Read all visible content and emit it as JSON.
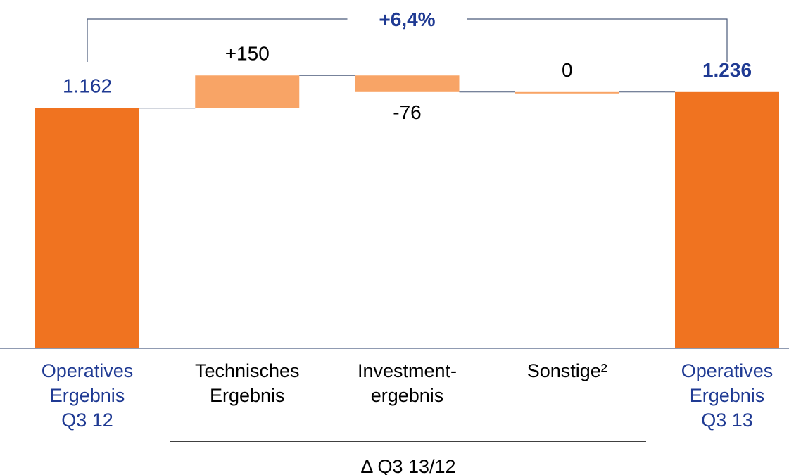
{
  "chart_data": {
    "type": "waterfall",
    "categories": [
      "Operatives\nErgebnis\nQ3 12",
      "Technisches\nErgebnis",
      "Investment-\nergebnis",
      "Sonstige²",
      "Operatives\nErgebnis\nQ3 13"
    ],
    "values": [
      1162,
      150,
      -76,
      0,
      1236
    ],
    "value_labels": [
      "1.162",
      "+150",
      "-76",
      "0",
      "1.236"
    ],
    "measure": [
      "absolute",
      "relative",
      "relative",
      "relative",
      "total"
    ],
    "total_color": "#f07320",
    "delta_color": "#f8a466",
    "ylim": [
      60,
      1400
    ],
    "growth_annotation": "+6,4%",
    "group_label": "Δ Q3 13/12"
  }
}
